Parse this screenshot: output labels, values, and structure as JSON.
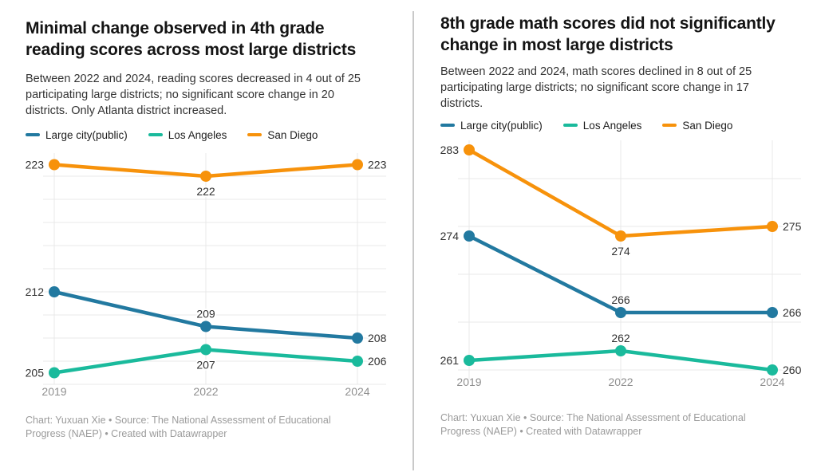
{
  "page": {
    "background": "#ffffff",
    "divider_color": "#c9c9c9"
  },
  "chart_data": [
    {
      "type": "line",
      "title": "Minimal change observed in 4th grade reading scores across most large districts",
      "subtitle": "Between 2022 and 2024, reading scores decreased in 4 out of 25 participating large districts; no significant score change in 20 districts. Only Atlanta district increased.",
      "footer": "Chart: Yuxuan Xie • Source: The National Assessment of Educational Progress (NAEP) • Created with Datawrapper",
      "categories": [
        "2019",
        "2022",
        "2024"
      ],
      "series": [
        {
          "name": "Large city(public)",
          "color": "#2279a0",
          "values": [
            212,
            209,
            208
          ],
          "label_pos": [
            "left",
            "above",
            "right"
          ]
        },
        {
          "name": "Los Angeles",
          "color": "#1aba9c",
          "values": [
            205,
            207,
            206
          ],
          "label_pos": [
            "left",
            "below",
            "right"
          ]
        },
        {
          "name": "San Diego",
          "color": "#f7920b",
          "values": [
            223,
            222,
            223
          ],
          "label_pos": [
            "left",
            "below",
            "right"
          ]
        }
      ],
      "ylim": [
        204,
        224
      ],
      "y_gridlines": [
        204,
        206,
        208,
        210,
        212,
        214,
        216,
        218,
        220,
        222
      ],
      "grid": true,
      "legend_position": "top",
      "xlabel": "",
      "ylabel": ""
    },
    {
      "type": "line",
      "title": "8th grade math scores did not significantly change in most large districts",
      "subtitle": "Between 2022 and 2024, math scores declined in 8 out of 25 participating large districts; no significant score change in 17 districts.",
      "footer": "Chart: Yuxuan Xie • Source: The National Assessment of Educational Progress (NAEP) • Created with Datawrapper",
      "categories": [
        "2019",
        "2022",
        "2024"
      ],
      "series": [
        {
          "name": "Large city(public)",
          "color": "#2279a0",
          "values": [
            274,
            266,
            266
          ],
          "label_pos": [
            "left",
            "above",
            "right"
          ]
        },
        {
          "name": "Los Angeles",
          "color": "#1aba9c",
          "values": [
            261,
            262,
            260
          ],
          "label_pos": [
            "left",
            "above",
            "right"
          ]
        },
        {
          "name": "San Diego",
          "color": "#f7920b",
          "values": [
            283,
            274,
            275
          ],
          "label_pos": [
            "left",
            "below",
            "right"
          ]
        }
      ],
      "ylim": [
        259,
        284
      ],
      "y_gridlines": [
        260,
        265,
        270,
        275,
        280
      ],
      "grid": true,
      "legend_position": "top",
      "xlabel": "",
      "ylabel": ""
    }
  ],
  "style": {
    "gridline_color": "#e9e9e9",
    "axis_label_color": "#8f8f8f",
    "data_label_color": "#303030"
  }
}
